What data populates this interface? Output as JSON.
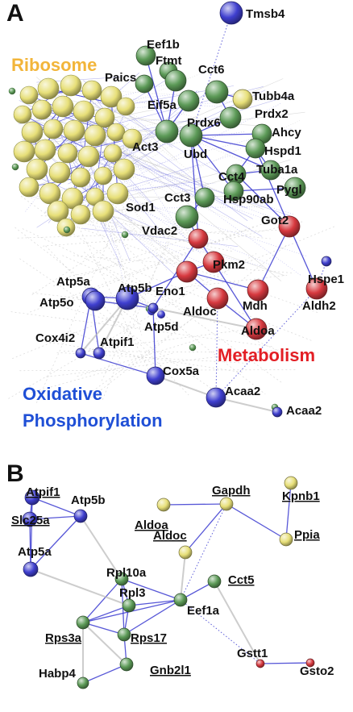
{
  "colors": {
    "ribosome": "#e7df78",
    "chaperone": "#5c9a57",
    "metabolism": "#d7393f",
    "oxphos": "#3f3fcf",
    "ribosome_label": "#f2b53a",
    "metabolism_label": "#e31e24",
    "oxphos_label": "#1f4fd6",
    "edge_grey": "#b8b8b8",
    "edge_blue": "#3a3ad0"
  },
  "panels": {
    "a": {
      "letter": "A"
    },
    "b": {
      "letter": "B"
    }
  },
  "clusters": {
    "ribosome": "Ribosome",
    "metabolism": "Metabolism",
    "oxphos_line1": "Oxidative",
    "oxphos_line2": "Phosphorylation"
  },
  "nodes_a": [
    {
      "id": "tmsb4",
      "label": "Tmsb4",
      "group": "oxphos"
    },
    {
      "id": "eef1b",
      "label": "Eef1b",
      "group": "chaperone"
    },
    {
      "id": "ftmt",
      "label": "Ftmt",
      "group": "chaperone"
    },
    {
      "id": "paics",
      "label": "Paics",
      "group": "chaperone"
    },
    {
      "id": "cct6",
      "label": "Cct6",
      "group": "chaperone"
    },
    {
      "id": "tubb4a",
      "label": "Tubb4a",
      "group": "ribosome"
    },
    {
      "id": "eif5a",
      "label": "Eif5a",
      "group": "chaperone"
    },
    {
      "id": "prdx2",
      "label": "Prdx2",
      "group": "chaperone"
    },
    {
      "id": "prdx6",
      "label": "Prdx6",
      "group": "chaperone"
    },
    {
      "id": "ahcy",
      "label": "Ahcy",
      "group": "chaperone"
    },
    {
      "id": "act3",
      "label": "Act3",
      "group": "chaperone"
    },
    {
      "id": "ubd",
      "label": "Ubd",
      "group": "chaperone"
    },
    {
      "id": "hspd1",
      "label": "Hspd1",
      "group": "chaperone"
    },
    {
      "id": "tuba1a",
      "label": "Tuba1a",
      "group": "chaperone"
    },
    {
      "id": "cct4",
      "label": "Cct4",
      "group": "chaperone"
    },
    {
      "id": "pygl",
      "label": "Pygl",
      "group": "chaperone"
    },
    {
      "id": "cct3",
      "label": "Cct3",
      "group": "chaperone"
    },
    {
      "id": "hsp90ab",
      "label": "Hsp90ab",
      "group": "chaperone"
    },
    {
      "id": "sod1",
      "label": "Sod1",
      "group": "chaperone"
    },
    {
      "id": "got2",
      "label": "Got2",
      "group": "metabolism"
    },
    {
      "id": "vdac2",
      "label": "Vdac2",
      "group": "metabolism"
    },
    {
      "id": "pkm2",
      "label": "Pkm2",
      "group": "metabolism"
    },
    {
      "id": "hspe1",
      "label": "Hspe1",
      "group": "oxphos"
    },
    {
      "id": "atp5a",
      "label": "Atp5a",
      "group": "oxphos"
    },
    {
      "id": "atp5b",
      "label": "Atp5b",
      "group": "oxphos"
    },
    {
      "id": "eno1",
      "label": "Eno1",
      "group": "metabolism"
    },
    {
      "id": "atp5o",
      "label": "Atp5o",
      "group": "oxphos"
    },
    {
      "id": "aldoc",
      "label": "Aldoc",
      "group": "metabolism"
    },
    {
      "id": "mdh",
      "label": "Mdh",
      "group": "metabolism"
    },
    {
      "id": "aldh2",
      "label": "Aldh2",
      "group": "metabolism"
    },
    {
      "id": "atp5d",
      "label": "Atp5d",
      "group": "oxphos"
    },
    {
      "id": "aldoa",
      "label": "Aldoa",
      "group": "metabolism"
    },
    {
      "id": "cox4i2",
      "label": "Cox4i2",
      "group": "oxphos"
    },
    {
      "id": "atpif1",
      "label": "Atpif1",
      "group": "oxphos"
    },
    {
      "id": "cox5a",
      "label": "Cox5a",
      "group": "oxphos"
    },
    {
      "id": "acaa2a",
      "label": "Acaa2",
      "group": "oxphos"
    },
    {
      "id": "acaa2b",
      "label": "Acaa2",
      "group": "oxphos"
    }
  ],
  "nodes_b": [
    {
      "id": "b_atpif1",
      "label": "Atpif1",
      "group": "oxphos",
      "underline": true
    },
    {
      "id": "b_atp5b",
      "label": "Atp5b",
      "group": "oxphos",
      "underline": false
    },
    {
      "id": "b_slc25a",
      "label": "Slc25a",
      "group": "oxphos",
      "underline": true
    },
    {
      "id": "b_atp5a",
      "label": "Atp5a",
      "group": "oxphos",
      "underline": false
    },
    {
      "id": "b_aldoa",
      "label": "Aldoa",
      "group": "ribosome",
      "underline": true
    },
    {
      "id": "b_gapdh",
      "label": "Gapdh",
      "group": "ribosome",
      "underline": true
    },
    {
      "id": "b_kpnb1",
      "label": "Kpnb1",
      "group": "ribosome",
      "underline": true
    },
    {
      "id": "b_aldoc",
      "label": "Aldoc",
      "group": "ribosome",
      "underline": true
    },
    {
      "id": "b_ppia",
      "label": "Ppia",
      "group": "ribosome",
      "underline": true
    },
    {
      "id": "b_rpl10a",
      "label": "Rpl10a",
      "group": "chaperone",
      "underline": false
    },
    {
      "id": "b_cct5",
      "label": "Cct5",
      "group": "chaperone",
      "underline": true
    },
    {
      "id": "b_rpl3",
      "label": "Rpl3",
      "group": "chaperone",
      "underline": false
    },
    {
      "id": "b_eef1a",
      "label": "Eef1a",
      "group": "chaperone",
      "underline": false
    },
    {
      "id": "b_rps3a",
      "label": "Rps3a",
      "group": "chaperone",
      "underline": true
    },
    {
      "id": "b_rps17",
      "label": "Rps17",
      "group": "chaperone",
      "underline": true
    },
    {
      "id": "b_gnb2l1",
      "label": "Gnb2l1",
      "group": "chaperone",
      "underline": true
    },
    {
      "id": "b_habp4",
      "label": "Habp4",
      "group": "chaperone",
      "underline": false
    },
    {
      "id": "b_gstt1",
      "label": "Gstt1",
      "group": "metabolism",
      "underline": false
    },
    {
      "id": "b_gsto2",
      "label": "Gsto2",
      "group": "metabolism",
      "underline": false
    }
  ]
}
